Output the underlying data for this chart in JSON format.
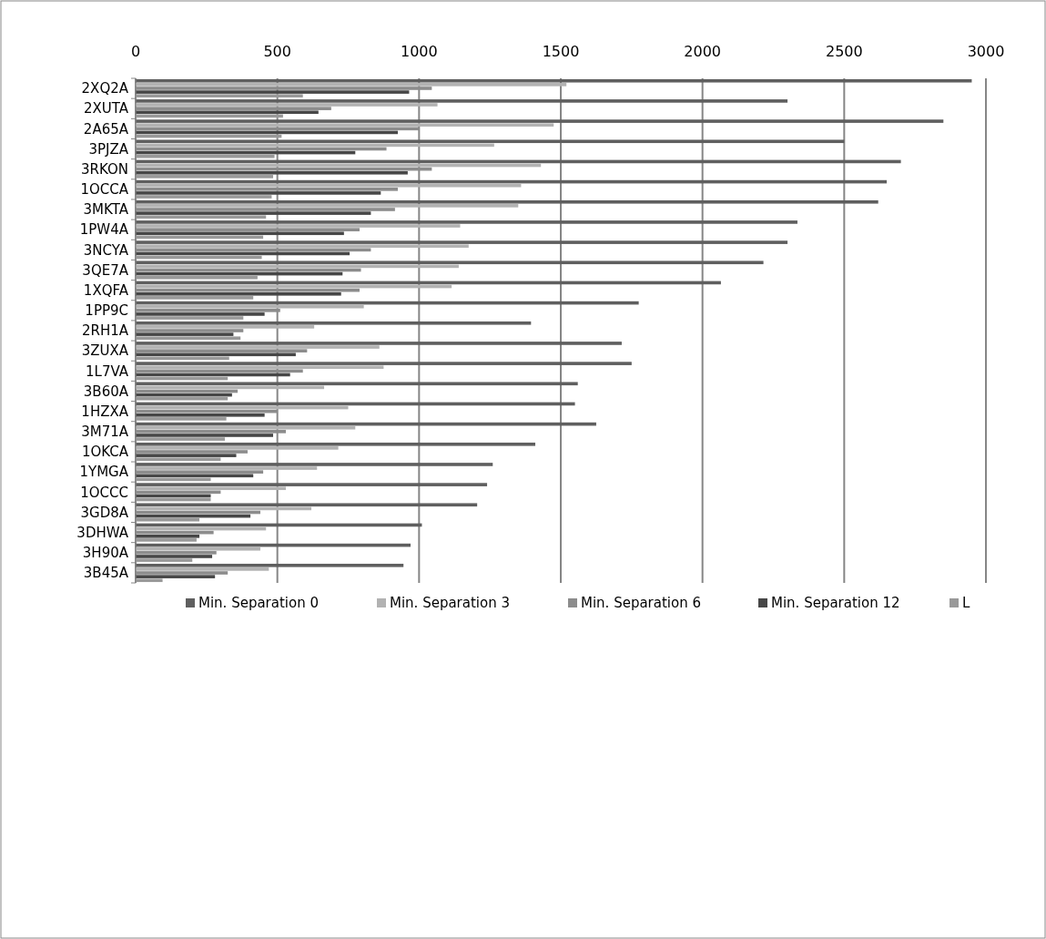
{
  "chart_data": {
    "type": "bar",
    "orientation": "horizontal",
    "categories": [
      "2XQ2A",
      "2XUTA",
      "2A65A",
      "3PJZA",
      "3RKON",
      "1OCCA",
      "3MKTA",
      "1PW4A",
      "3NCYA",
      "3QE7A",
      "1XQFA",
      "1PP9C",
      "2RH1A",
      "3ZUXA",
      "1L7VA",
      "3B60A",
      "1HZXA",
      "3M71A",
      "1OKCA",
      "1YMGA",
      "1OCCC",
      "3GD8A",
      "3DHWA",
      "3H90A",
      "3B45A"
    ],
    "series": [
      {
        "name": "Min. Separation 0",
        "color": "#5f5f5f",
        "values": [
          2950,
          2300,
          2850,
          2500,
          2700,
          2650,
          2620,
          2335,
          2300,
          2215,
          2065,
          1775,
          1395,
          1715,
          1750,
          1560,
          1550,
          1625,
          1410,
          1260,
          1240,
          1205,
          1010,
          970,
          945
        ]
      },
      {
        "name": "Min. Separation 3",
        "color": "#b2b2b2",
        "values": [
          1520,
          1065,
          1475,
          1265,
          1430,
          1360,
          1350,
          1145,
          1175,
          1140,
          1115,
          805,
          630,
          860,
          875,
          665,
          750,
          775,
          715,
          640,
          530,
          620,
          460,
          440,
          470
        ]
      },
      {
        "name": "Min. Separation 6",
        "color": "#8c8c8c",
        "values": [
          1045,
          690,
          1000,
          885,
          1045,
          925,
          915,
          790,
          830,
          795,
          790,
          510,
          380,
          605,
          590,
          360,
          500,
          530,
          395,
          450,
          300,
          440,
          275,
          285,
          325
        ]
      },
      {
        "name": "Min. Separation 12",
        "color": "#474747",
        "values": [
          965,
          645,
          925,
          775,
          960,
          865,
          830,
          735,
          755,
          730,
          725,
          455,
          345,
          565,
          545,
          340,
          455,
          485,
          355,
          415,
          265,
          405,
          225,
          270,
          280
        ]
      },
      {
        "name": "L",
        "color": "#999999",
        "values": [
          590,
          520,
          515,
          490,
          485,
          480,
          460,
          450,
          445,
          430,
          415,
          380,
          370,
          330,
          325,
          325,
          320,
          315,
          300,
          265,
          265,
          225,
          215,
          200,
          95
        ]
      }
    ],
    "xlim": [
      0,
      3000
    ],
    "xticks": [
      0,
      500,
      1000,
      1500,
      2000,
      2500,
      3000
    ],
    "grid": "x",
    "legend": "bottom"
  }
}
